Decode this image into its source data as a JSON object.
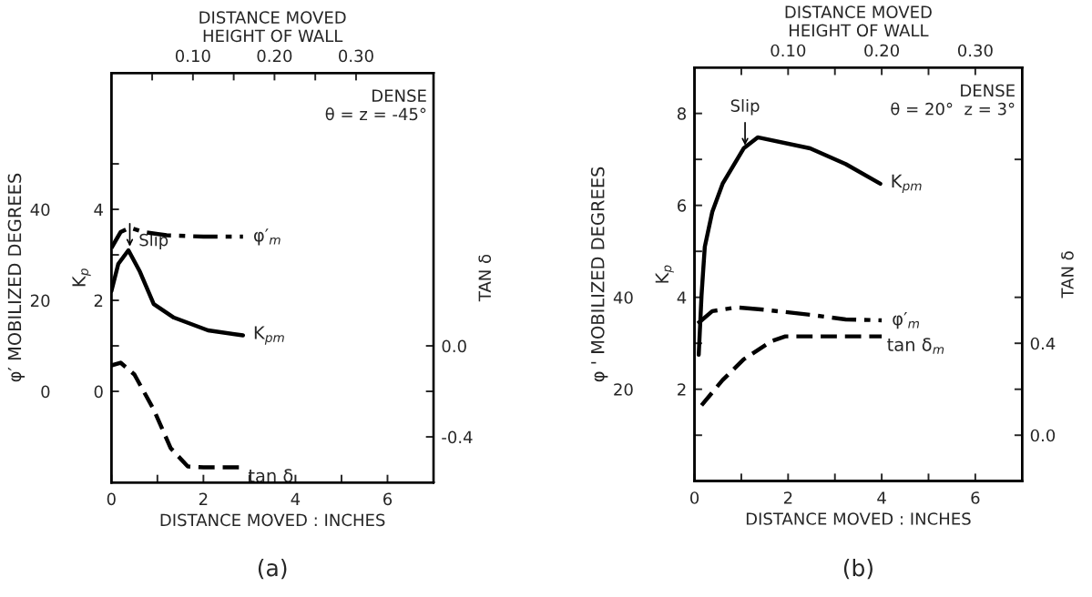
{
  "chart_data": [
    {
      "type": "line",
      "title": "(a)",
      "xlabel": "DISTANCE MOVED : INCHES",
      "ylabel": "K$_{p}$",
      "y2label": "TAN δ",
      "y3label": "φ′ MOBILIZED DEGREES",
      "x2label": "DISTANCE MOVED\nHEIGHT OF WALL",
      "xlim": [
        0,
        7
      ],
      "xticks": [
        0,
        {
          "value": 1,
          "label": null
        },
        2,
        {
          "value": 3,
          "label": null
        },
        4,
        {
          "value": 5,
          "label": null
        },
        6
      ],
      "ylim": [
        -2,
        7
      ],
      "yticks": [
        0,
        {
          "value": 1,
          "label": null
        },
        2,
        {
          "value": 3,
          "label": null
        },
        4,
        {
          "value": 5,
          "label": null
        }
      ],
      "y2lim": [
        -0.6,
        1.2
      ],
      "y2ticks": [
        {
          "value": -0.4,
          "label": "-0.4"
        },
        {
          "value": -0.2,
          "label": null
        },
        {
          "value": 0.0,
          "label": "0.0"
        }
      ],
      "y3lim": [
        -20,
        70
      ],
      "y3ticks": [
        0,
        20,
        40
      ],
      "x2lim": [
        0,
        0.395
      ],
      "x2ticks": [
        {
          "value": 0.05,
          "label": null
        },
        {
          "value": 0.1,
          "label": "0.10"
        },
        {
          "value": 0.15,
          "label": null
        },
        {
          "value": 0.2,
          "label": "0.20"
        },
        {
          "value": 0.25,
          "label": null
        },
        {
          "value": 0.3,
          "label": "0.30"
        }
      ],
      "series": [
        {
          "name": "φ′$_{m}$",
          "color": "#000000",
          "axis": "y3",
          "line_style": "dashdot",
          "x": [
            0,
            0.2,
            0.4,
            0.7,
            1.2,
            2.0,
            2.86
          ],
          "values": [
            31.5,
            35,
            36,
            35,
            34.3,
            34,
            34
          ]
        },
        {
          "name": "K$_{pm}$",
          "color": "#000000",
          "axis": "y",
          "line_style": "solid",
          "x": [
            0,
            0.15,
            0.37,
            0.62,
            0.92,
            1.36,
            2.1,
            2.86
          ],
          "values": [
            2.2,
            2.8,
            3.1,
            2.63,
            1.92,
            1.62,
            1.34,
            1.23
          ]
        },
        {
          "name": "tan δ",
          "color": "#000000",
          "axis": "y2",
          "line_style": "dashed",
          "x": [
            0,
            0.2,
            0.5,
            0.92,
            1.29,
            1.66,
            2.0,
            2.86
          ],
          "values": [
            -0.086,
            -0.074,
            -0.126,
            -0.28,
            -0.45,
            -0.53,
            -0.534,
            -0.534
          ]
        }
      ],
      "annotations": [
        {
          "text": "Slip",
          "x": 0.4,
          "y": 3.13
        },
        "DENSE\nθ = z = -45°"
      ]
    },
    {
      "type": "line",
      "title": "(b)",
      "xlabel": "DISTANCE MOVED : INCHES",
      "ylabel": "K$_{p}$",
      "y2label": "TAN δ",
      "y3label": "φ ' MOBILIZED DEGREES",
      "x2label": "DISTANCE MOVED\nHEIGHT OF WALL",
      "xlim": [
        0,
        7
      ],
      "xticks": [
        0,
        {
          "value": 1,
          "label": null
        },
        2,
        {
          "value": 3,
          "label": null
        },
        4,
        {
          "value": 5,
          "label": null
        },
        6
      ],
      "ylim": [
        0,
        9
      ],
      "yticks": [
        {
          "value": 1,
          "label": null
        },
        2,
        {
          "value": 3,
          "label": null
        },
        4,
        {
          "value": 5,
          "label": null
        },
        6,
        {
          "value": 7,
          "label": null
        },
        8
      ],
      "y2lim": [
        -0.2,
        1.6
      ],
      "y2ticks": [
        {
          "value": 0.0,
          "label": "0.0"
        },
        {
          "value": 0.2,
          "label": null
        },
        {
          "value": 0.4,
          "label": "0.4"
        },
        {
          "value": 0.6,
          "label": null
        },
        {
          "value": 1.2,
          "label": null
        }
      ],
      "y3lim": [
        0,
        90
      ],
      "y3ticks": [
        20,
        40
      ],
      "x2lim": [
        0,
        0.35
      ],
      "x2ticks": [
        {
          "value": 0.05,
          "label": null
        },
        {
          "value": 0.1,
          "label": "0.10"
        },
        {
          "value": 0.15,
          "label": null
        },
        {
          "value": 0.2,
          "label": "0.20"
        },
        {
          "value": 0.25,
          "label": null
        },
        {
          "value": 0.3,
          "label": "0.30"
        }
      ],
      "series": [
        {
          "name": "K$_{pm}$",
          "color": "#000000",
          "axis": "y",
          "line_style": "solid",
          "x": [
            0.09,
            0.15,
            0.18,
            0.22,
            0.38,
            0.6,
            1.05,
            1.35,
            2.47,
            3.23,
            3.97
          ],
          "values": [
            2.75,
            4.04,
            4.5,
            5.1,
            5.86,
            6.47,
            7.24,
            7.48,
            7.24,
            6.9,
            6.47
          ]
        },
        {
          "name": "φ′$_{m}$",
          "color": "#000000",
          "axis": "y3",
          "line_style": "dashdot",
          "x": [
            0.07,
            0.38,
            0.9,
            1.5,
            2.47,
            3.23,
            4.0
          ],
          "values": [
            34.3,
            37,
            37.8,
            37.3,
            36.2,
            35.2,
            35
          ]
        },
        {
          "name": "tan δ$_{m}$",
          "color": "#000000",
          "axis": "y2",
          "line_style": "dashed",
          "x": [
            0.15,
            0.6,
            1.05,
            1.65,
            1.94,
            4.0
          ],
          "values": [
            0.13,
            0.24,
            0.33,
            0.41,
            0.43,
            0.43
          ]
        }
      ],
      "annotations": [
        {
          "text": "Slip",
          "x": 1.08,
          "y": 7.25
        },
        "DENSE\nθ = 20°  z = 3°"
      ]
    }
  ]
}
